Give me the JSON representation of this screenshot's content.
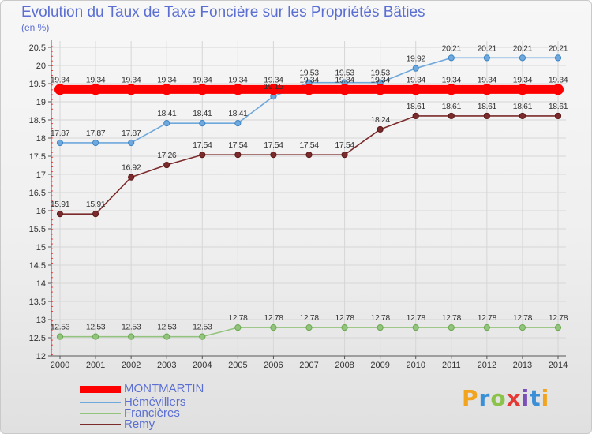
{
  "title": "Evolution du Taux de Taxe Foncière sur les Propriétés Bâties",
  "subtitle": "(en %)",
  "logo": {
    "text": "Proxiti",
    "colors": [
      "#f2a41f",
      "#3a8fd6",
      "#8bc34a",
      "#e53935",
      "#7b4fb8",
      "#3a8fd6",
      "#f2a41f"
    ]
  },
  "legend": [
    {
      "label": "MONTMARTIN",
      "color": "#ff0000",
      "thick": true
    },
    {
      "label": "Hémévillers",
      "color": "#6fa8dc",
      "thick": false
    },
    {
      "label": "Francières",
      "color": "#93c47d",
      "thick": false
    },
    {
      "label": "Remy",
      "color": "#7b2b2b",
      "thick": false
    }
  ],
  "chart_data": {
    "type": "line",
    "title": "Evolution du Taux de Taxe Foncière sur les Propriétés Bâties",
    "ylabel": "(en %)",
    "xlabel": "",
    "x": [
      2000,
      2001,
      2002,
      2003,
      2004,
      2005,
      2006,
      2007,
      2008,
      2009,
      2010,
      2011,
      2012,
      2013,
      2014
    ],
    "ylim": [
      12,
      20.5
    ],
    "yticks": [
      "12",
      "12.5",
      "13",
      "13.5",
      "14",
      "14.5",
      "15",
      "15.5",
      "16",
      "16.5",
      "17",
      "17.5",
      "18",
      "18.5",
      "19",
      "19.5",
      "20",
      "20.5"
    ],
    "grid": true,
    "series": [
      {
        "name": "Hémévillers",
        "color": "#6fa8dc",
        "marker": "#3d85c6",
        "values": [
          17.87,
          17.87,
          17.87,
          18.41,
          18.41,
          18.41,
          19.15,
          19.53,
          19.53,
          19.53,
          19.92,
          20.21,
          20.21,
          20.21,
          20.21
        ],
        "labels": [
          "17.87",
          "17.87",
          "17.87",
          "18.41",
          "18.41",
          "18.41",
          "19.15",
          "19.53",
          "19.53",
          "19.53",
          "19.92",
          "20.21",
          "20.21",
          "20.21",
          "20.21"
        ]
      },
      {
        "name": "Francières",
        "color": "#93c47d",
        "marker": "#6aa84f",
        "values": [
          12.53,
          12.53,
          12.53,
          12.53,
          12.53,
          12.78,
          12.78,
          12.78,
          12.78,
          12.78,
          12.78,
          12.78,
          12.78,
          12.78,
          12.78
        ],
        "labels": [
          "12.53",
          "12.53",
          "12.53",
          "12.53",
          "12.53",
          "12.78",
          "12.78",
          "12.78",
          "12.78",
          "12.78",
          "12.78",
          "12.78",
          "12.78",
          "12.78",
          "12.78"
        ]
      },
      {
        "name": "Remy",
        "color": "#7b2b2b",
        "marker": "#5b1a1a",
        "values": [
          15.91,
          15.91,
          16.92,
          17.26,
          17.54,
          17.54,
          17.54,
          17.54,
          17.54,
          18.24,
          18.61,
          18.61,
          18.61,
          18.61,
          18.61
        ],
        "labels": [
          "15.91",
          "15.91",
          "16.92",
          "17.26",
          "17.54",
          "17.54",
          "17.54",
          "17.54",
          "17.54",
          "18.24",
          "18.61",
          "18.61",
          "18.61",
          "18.61",
          "18.61"
        ]
      },
      {
        "name": "MONTMARTIN",
        "color": "#ff0000",
        "marker": "#ff0000",
        "values": [
          19.34,
          19.34,
          19.34,
          19.34,
          19.34,
          19.34,
          19.34,
          19.34,
          19.34,
          19.34,
          19.34,
          19.34,
          19.34,
          19.34,
          19.34
        ],
        "labels": [
          "19.34",
          "19.34",
          "19.34",
          "19.34",
          "19.34",
          "19.34",
          "19.34",
          "19.34",
          "19.34",
          "19.34",
          "19.34",
          "19.34",
          "19.34",
          "19.34",
          "19.34"
        ]
      }
    ]
  }
}
